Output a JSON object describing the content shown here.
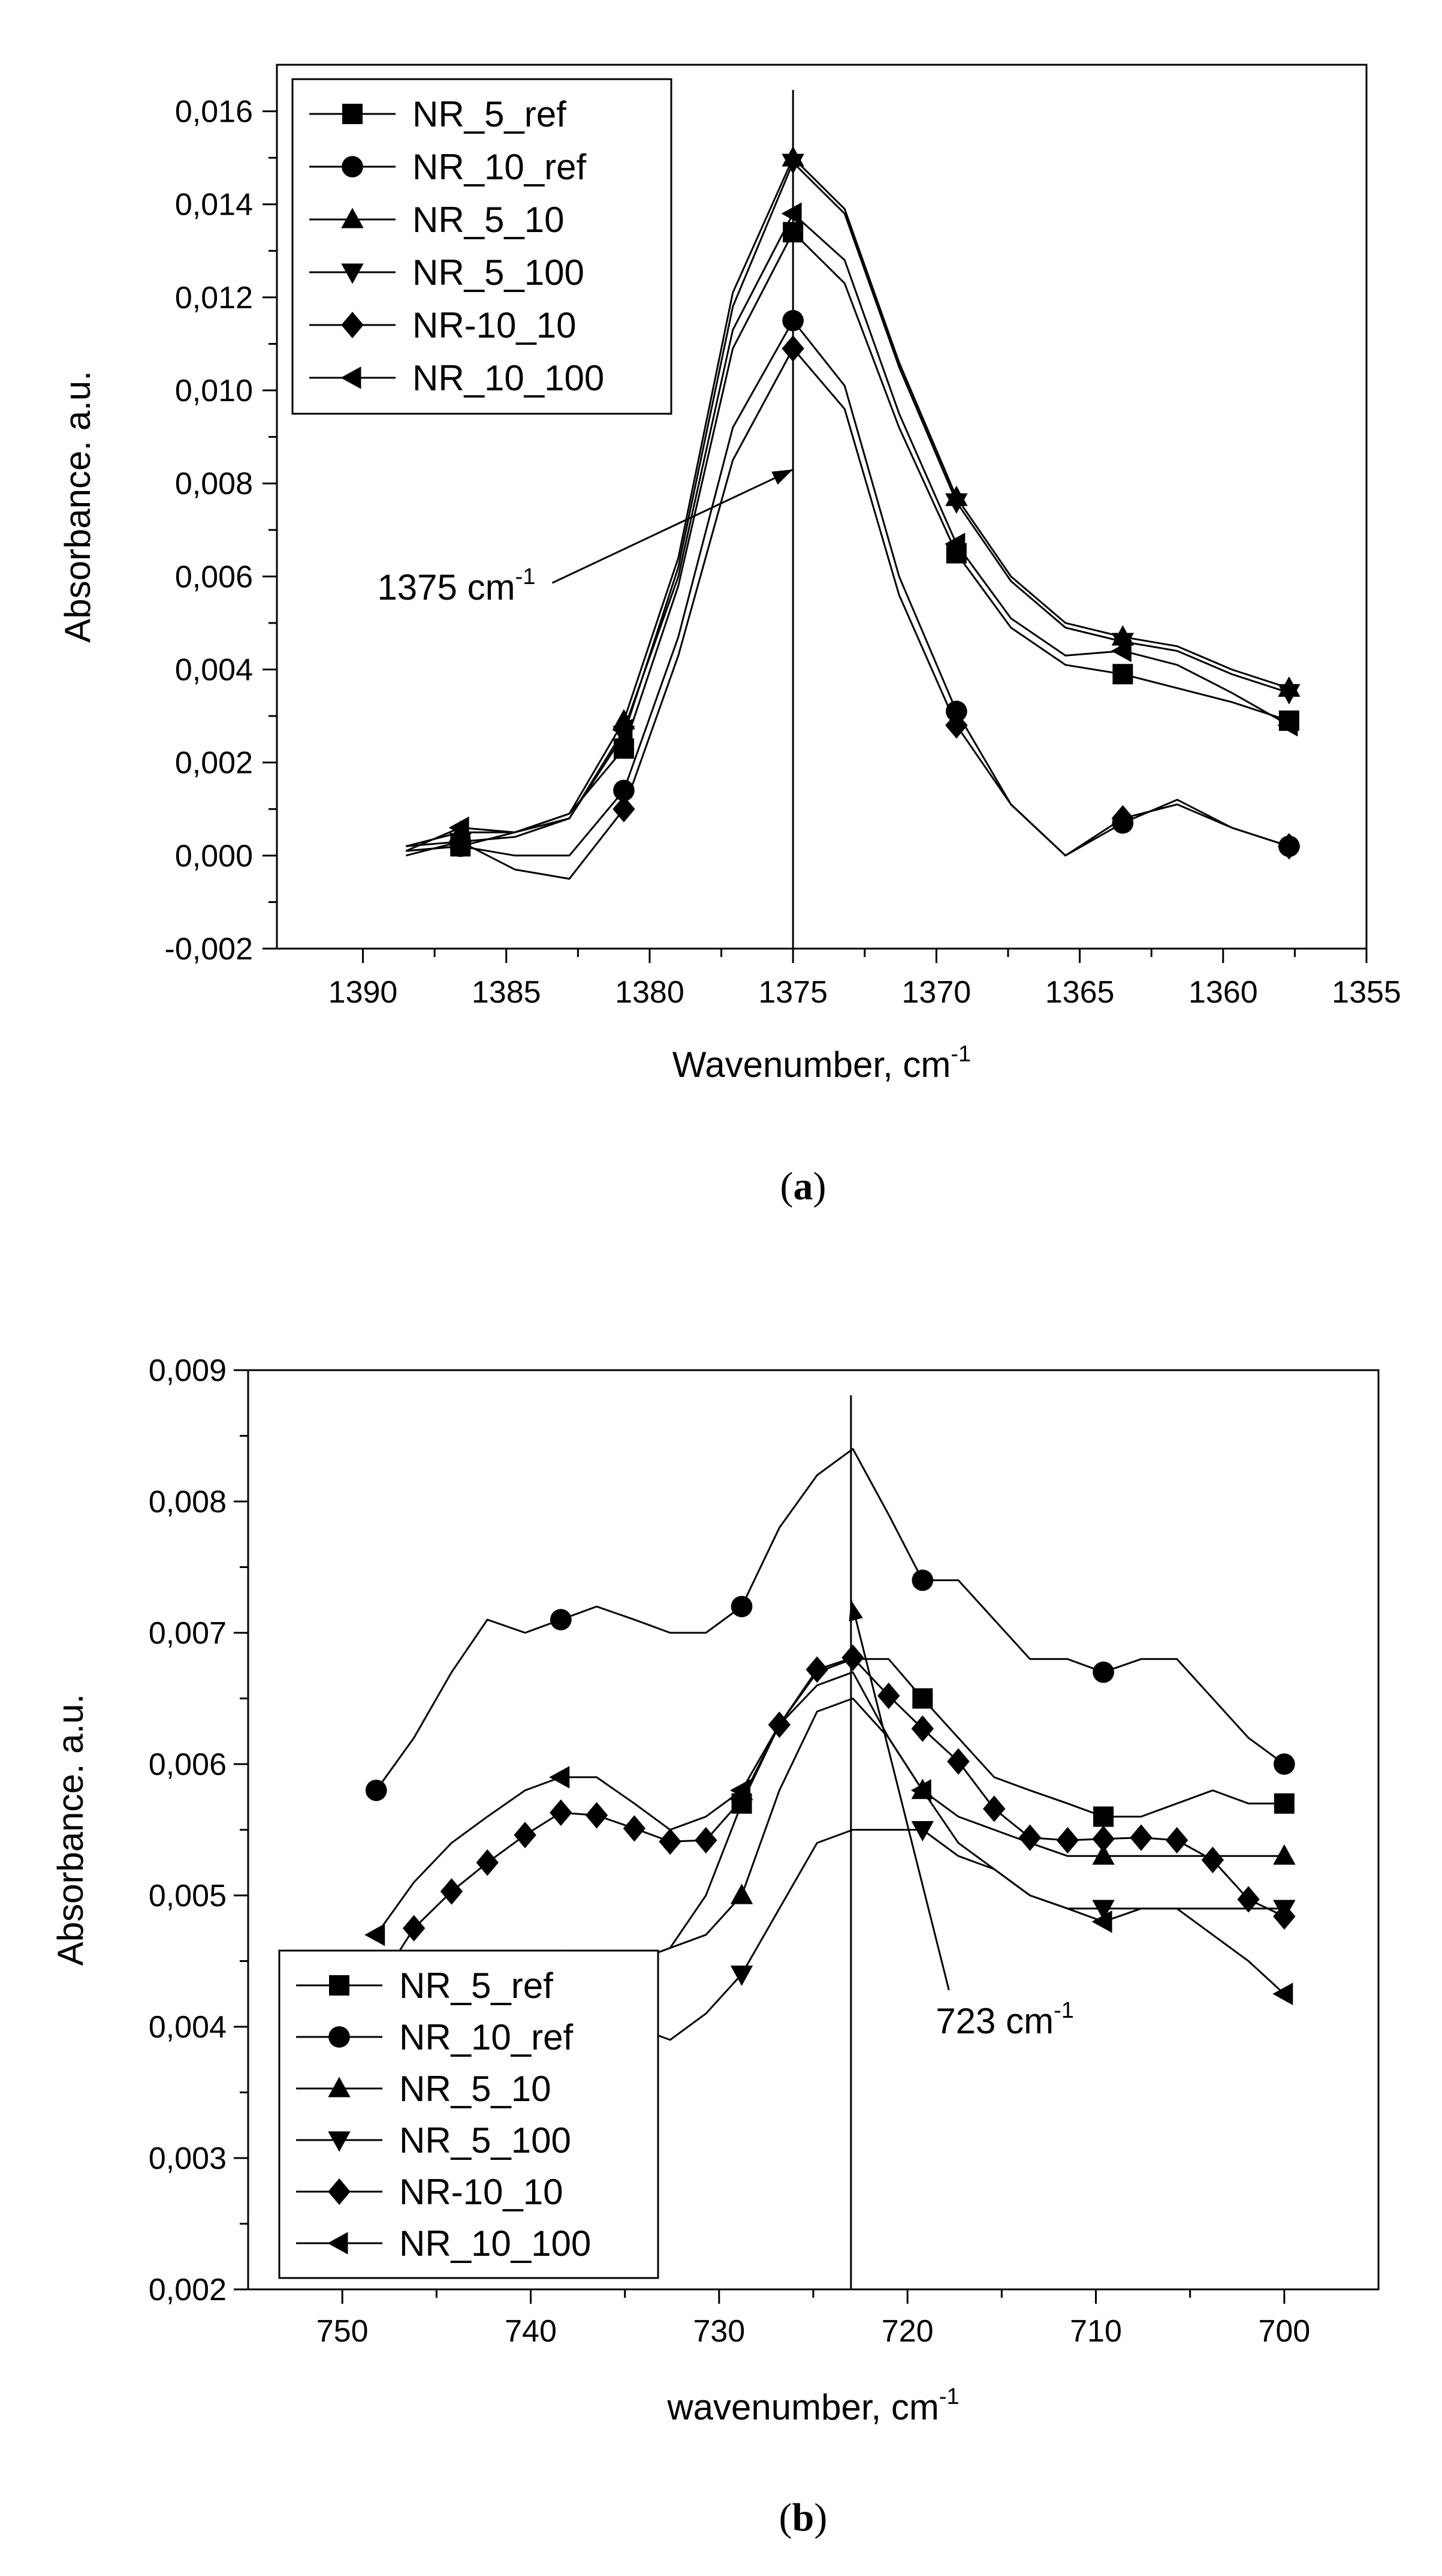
{
  "chart_data": [
    {
      "type": "line",
      "panel_label": "a",
      "xlabel": "Wavenumber, cm",
      "xlabel_sup": "-1",
      "ylabel": "Absorbance. a.u.",
      "xlim": [
        1393,
        1355
      ],
      "ylim": [
        -0.002,
        0.017
      ],
      "xticks": [
        "1390",
        "1385",
        "1380",
        "1375",
        "1370",
        "1365",
        "1360",
        "1355"
      ],
      "yticks": [
        "-0,002",
        "0,000",
        "0,002",
        "0,004",
        "0,006",
        "0,008",
        "0,010",
        "0,012",
        "0,014",
        "0,016"
      ],
      "vline_x": 1375,
      "annotation": {
        "text": "1375 cm",
        "sup": "-1",
        "x": 1389.5,
        "y": 0.0055,
        "arrow_to": [
          1375,
          0.0083
        ]
      },
      "legend_position": "top-left",
      "series": [
        {
          "name": "NR_5_ref",
          "marker": "square",
          "x": [
            1388.5,
            1386.6,
            1384.7,
            1382.8,
            1380.9,
            1379,
            1377.1,
            1375,
            1373.2,
            1371.3,
            1369.3,
            1367.4,
            1365.5,
            1363.5,
            1361.6,
            1359.7,
            1357.7
          ],
          "y": [
            0.0001,
            0.0002,
            0.0005,
            0.0009,
            0.0023,
            0.0058,
            0.0109,
            0.0134,
            0.0123,
            0.0092,
            0.0065,
            0.0049,
            0.0041,
            0.0039,
            0.0036,
            0.0033,
            0.0029
          ],
          "marked": [
            1,
            4,
            7,
            10,
            13,
            16
          ]
        },
        {
          "name": "NR_10_ref",
          "marker": "circle",
          "x": [
            1388.5,
            1386.6,
            1384.7,
            1382.8,
            1380.9,
            1379,
            1377.1,
            1375,
            1373.2,
            1371.3,
            1369.3,
            1367.4,
            1365.5,
            1363.5,
            1361.6,
            1359.7,
            1357.7
          ],
          "y": [
            0.0001,
            0.0002,
            0.0,
            0.0,
            0.0014,
            0.0047,
            0.0092,
            0.0115,
            0.0101,
            0.006,
            0.0031,
            0.0011,
            0.0,
            0.0007,
            0.0012,
            0.0006,
            0.0002
          ],
          "marked": [
            1,
            4,
            7,
            10,
            13,
            16
          ]
        },
        {
          "name": "NR_5_10",
          "marker": "triangle-up",
          "x": [
            1388.5,
            1386.6,
            1384.7,
            1382.8,
            1380.9,
            1379,
            1377.1,
            1375,
            1373.2,
            1371.3,
            1369.3,
            1367.4,
            1365.5,
            1363.5,
            1361.6,
            1359.7,
            1357.7
          ],
          "y": [
            0.0002,
            0.0005,
            0.0005,
            0.0009,
            0.0029,
            0.0064,
            0.0121,
            0.015,
            0.0139,
            0.0106,
            0.0077,
            0.006,
            0.005,
            0.0047,
            0.0045,
            0.004,
            0.0036
          ],
          "marked": [
            1,
            4,
            7,
            10,
            13,
            16
          ]
        },
        {
          "name": "NR_5_100",
          "marker": "triangle-down",
          "x": [
            1388.5,
            1386.6,
            1384.7,
            1382.8,
            1380.9,
            1379,
            1377.1,
            1375,
            1373.2,
            1371.3,
            1369.3,
            1367.4,
            1365.5,
            1363.5,
            1361.6,
            1359.7,
            1357.7
          ],
          "y": [
            0.0002,
            0.0003,
            0.0004,
            0.0008,
            0.0026,
            0.0062,
            0.0118,
            0.0149,
            0.0138,
            0.0105,
            0.0076,
            0.0059,
            0.0049,
            0.0046,
            0.0044,
            0.0039,
            0.0035
          ],
          "marked": [
            1,
            4,
            7,
            10,
            13,
            16
          ]
        },
        {
          "name": "NR-10_10",
          "marker": "diamond",
          "x": [
            1388.5,
            1386.6,
            1384.7,
            1382.8,
            1380.9,
            1379,
            1377.1,
            1375,
            1373.2,
            1371.3,
            1369.3,
            1367.4,
            1365.5,
            1363.5,
            1361.6,
            1359.7,
            1357.7
          ],
          "y": [
            0.0,
            0.0003,
            -0.0003,
            -0.0005,
            0.001,
            0.0043,
            0.0085,
            0.0109,
            0.0096,
            0.0056,
            0.0028,
            0.0011,
            0.0,
            0.0008,
            0.0011,
            0.0006,
            0.0002
          ],
          "marked": [
            1,
            4,
            7,
            10,
            13,
            16
          ]
        },
        {
          "name": "NR_10_100",
          "marker": "triangle-left",
          "x": [
            1388.5,
            1386.6,
            1384.7,
            1382.8,
            1380.9,
            1379,
            1377.1,
            1375,
            1373.2,
            1371.3,
            1369.3,
            1367.4,
            1365.5,
            1363.5,
            1361.6,
            1359.7,
            1357.7
          ],
          "y": [
            0.0001,
            0.0006,
            0.0005,
            0.0008,
            0.0027,
            0.006,
            0.0113,
            0.0138,
            0.0128,
            0.0095,
            0.0067,
            0.0051,
            0.0043,
            0.0044,
            0.0041,
            0.0035,
            0.0028
          ],
          "marked": [
            1,
            4,
            7,
            10,
            13,
            16
          ]
        }
      ]
    },
    {
      "type": "line",
      "panel_label": "b",
      "xlabel": "wavenumber, cm",
      "xlabel_sup": "-1",
      "ylabel": "Absorbance. a.u.",
      "xlim": [
        755,
        695
      ],
      "ylim": [
        0.002,
        0.009
      ],
      "xticks": [
        "750",
        "740",
        "730",
        "720",
        "710",
        "700"
      ],
      "yticks": [
        "0,002",
        "0,003",
        "0,004",
        "0,005",
        "0,006",
        "0,007",
        "0,008",
        "0,009"
      ],
      "vline_x": 723,
      "annotation": {
        "text": "723 cm",
        "sup": "-1",
        "x": 718.5,
        "y": 0.00395,
        "arrow_to": [
          723,
          0.00725
        ]
      },
      "legend_position": "bottom-left",
      "series": [
        {
          "name": "NR_5_ref",
          "marker": "square",
          "x": [
            748.2,
            746.2,
            744.2,
            742.3,
            740.3,
            738.4,
            736.5,
            734.5,
            732.6,
            730.7,
            728.8,
            726.8,
            724.8,
            722.9,
            721,
            719.2,
            717.3,
            715.4,
            713.5,
            711.5,
            709.6,
            707.6,
            705.7,
            703.8,
            701.9,
            700
          ],
          "y": [
            0.0043,
            0.0043,
            0.0044,
            0.0044,
            0.0045,
            0.0045,
            0.0045,
            0.0045,
            0.0046,
            0.005,
            0.0057,
            0.0063,
            0.0067,
            0.0068,
            0.0068,
            0.0065,
            0.0062,
            0.0059,
            0.0058,
            0.0057,
            0.0056,
            0.0056,
            0.0057,
            0.0058,
            0.0057,
            0.0057
          ],
          "marked": [
            10,
            15,
            20,
            25
          ]
        },
        {
          "name": "NR_10_ref",
          "marker": "circle",
          "x": [
            748.2,
            746.2,
            744.2,
            742.3,
            740.3,
            738.4,
            736.5,
            734.5,
            732.6,
            730.7,
            728.8,
            726.8,
            724.8,
            722.9,
            721,
            719.2,
            717.3,
            715.4,
            713.5,
            711.5,
            709.6,
            707.6,
            705.7,
            703.8,
            701.9,
            700
          ],
          "y": [
            0.0058,
            0.0062,
            0.0067,
            0.0071,
            0.007,
            0.0071,
            0.0072,
            0.0071,
            0.007,
            0.007,
            0.0072,
            0.0078,
            0.0082,
            0.0084,
            0.0079,
            0.0074,
            0.0074,
            0.0071,
            0.0068,
            0.0068,
            0.0067,
            0.0068,
            0.0068,
            0.0065,
            0.0062,
            0.006
          ],
          "marked": [
            0,
            5,
            10,
            15,
            20,
            25
          ]
        },
        {
          "name": "NR_5_10",
          "marker": "triangle-up",
          "x": [
            748.2,
            746.2,
            744.2,
            742.3,
            740.3,
            738.4,
            736.5,
            734.5,
            732.6,
            730.7,
            728.8,
            726.8,
            724.8,
            722.9,
            721,
            719.2,
            717.3,
            715.4,
            713.5,
            711.5,
            709.6,
            707.6,
            705.7,
            703.8,
            701.9,
            700
          ],
          "y": [
            0.0043,
            0.0043,
            0.0044,
            0.0044,
            0.0045,
            0.0045,
            0.0045,
            0.0045,
            0.0046,
            0.0047,
            0.005,
            0.0058,
            0.0064,
            0.0065,
            0.0062,
            0.0058,
            0.0056,
            0.0055,
            0.0054,
            0.0053,
            0.0053,
            0.0053,
            0.0053,
            0.0053,
            0.0053,
            0.0053
          ],
          "marked": [
            5,
            10,
            15,
            20,
            25
          ]
        },
        {
          "name": "NR_5_100",
          "marker": "triangle-down",
          "x": [
            748.2,
            746.2,
            744.2,
            742.3,
            740.3,
            738.4,
            736.5,
            734.5,
            732.6,
            730.7,
            728.8,
            726.8,
            724.8,
            722.9,
            721,
            719.2,
            717.3,
            715.4,
            713.5,
            711.5,
            709.6,
            707.6,
            705.7,
            703.8,
            701.9,
            700
          ],
          "y": [
            0.0041,
            0.0041,
            0.0041,
            0.0041,
            0.004,
            0.004,
            0.004,
            0.004,
            0.0039,
            0.0041,
            0.0044,
            0.0049,
            0.0054,
            0.0055,
            0.0055,
            0.0055,
            0.0053,
            0.0052,
            0.005,
            0.0049,
            0.0049,
            0.0049,
            0.0049,
            0.0049,
            0.0049,
            0.0049
          ],
          "marked": [
            10,
            15,
            20,
            25
          ]
        },
        {
          "name": "NR-10_10",
          "marker": "diamond",
          "x": [
            748.2,
            746.2,
            744.2,
            742.3,
            740.3,
            738.4,
            736.5,
            734.5,
            732.6,
            730.7,
            728.8,
            726.8,
            724.8,
            722.9,
            721,
            719.2,
            717.3,
            715.4,
            713.5,
            711.5,
            709.6,
            707.6,
            705.7,
            703.8,
            701.9,
            700
          ],
          "y": [
            0.0043,
            0.00475,
            0.00503,
            0.00525,
            0.00546,
            0.00563,
            0.00561,
            0.00551,
            0.00541,
            0.00542,
            0.00573,
            0.0063,
            0.00672,
            0.00681,
            0.00652,
            0.00627,
            0.00602,
            0.00566,
            0.00544,
            0.00542,
            0.00543,
            0.00544,
            0.00542,
            0.00527,
            0.00497,
            0.00484
          ],
          "marked": [
            1,
            2,
            3,
            4,
            5,
            6,
            7,
            8,
            9,
            10,
            11,
            12,
            13,
            14,
            15,
            16,
            17,
            18,
            19,
            20,
            21,
            22,
            23,
            24,
            25
          ]
        },
        {
          "name": "NR_10_100",
          "marker": "triangle-left",
          "x": [
            748.2,
            746.2,
            744.2,
            742.3,
            740.3,
            738.4,
            736.5,
            734.5,
            732.6,
            730.7,
            728.8,
            726.8,
            724.8,
            722.9,
            721,
            719.2,
            717.3,
            715.4,
            713.5,
            711.5,
            709.6,
            707.6,
            705.7,
            703.8,
            701.9,
            700
          ],
          "y": [
            0.0047,
            0.0051,
            0.0054,
            0.0056,
            0.0058,
            0.0059,
            0.0059,
            0.0057,
            0.0055,
            0.0056,
            0.0058,
            0.0063,
            0.0066,
            0.0067,
            0.0062,
            0.0058,
            0.0054,
            0.0052,
            0.005,
            0.0049,
            0.0048,
            0.0049,
            0.0049,
            0.0047,
            0.0045,
            0.00425
          ],
          "marked": [
            0,
            5,
            10,
            15,
            20,
            25
          ]
        }
      ]
    }
  ]
}
